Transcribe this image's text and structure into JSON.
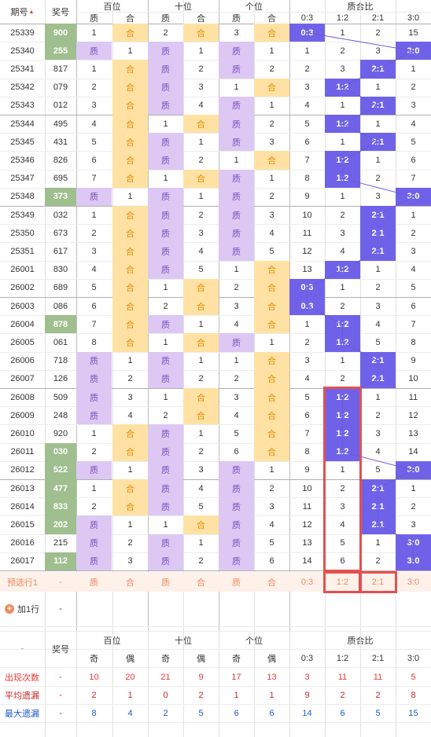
{
  "header": {
    "period": "期号",
    "sort_mark": "▲",
    "prize": "奖号",
    "groups": [
      "百位",
      "十位",
      "个位",
      "质合比"
    ],
    "ratio_cols": [
      "0:3",
      "1:2",
      "2:1",
      "3:0"
    ]
  },
  "labels": {
    "zhi": "质",
    "he": "合"
  },
  "chart_data": {
    "type": "table",
    "columns": [
      "期号",
      "奖号",
      "百位",
      "十位",
      "个位",
      "质合比"
    ],
    "ratio_categories": [
      "0:3",
      "1:2",
      "2:1",
      "3:0"
    ],
    "rows": [
      {
        "period": "25339",
        "prize": "900",
        "hl": true,
        "d": [
          [
            "n",
            "1"
          ],
          [
            "h",
            "合"
          ],
          [
            "n",
            "2"
          ],
          [
            "h",
            "合"
          ],
          [
            "n",
            "3"
          ],
          [
            "h",
            "合"
          ]
        ],
        "r": [
          "0:3",
          "1",
          "2",
          "15"
        ]
      },
      {
        "period": "25340",
        "prize": "255",
        "hl": true,
        "d": [
          [
            "z",
            "质"
          ],
          [
            "n",
            "1"
          ],
          [
            "z",
            "质"
          ],
          [
            "n",
            "1"
          ],
          [
            "z",
            "质"
          ],
          [
            "n",
            "1"
          ]
        ],
        "r": [
          "1",
          "2",
          "3",
          "3:0"
        ]
      },
      {
        "period": "25341",
        "prize": "817",
        "hl": false,
        "d": [
          [
            "n",
            "1"
          ],
          [
            "h",
            "合"
          ],
          [
            "z",
            "质"
          ],
          [
            "n",
            "2"
          ],
          [
            "z",
            "质"
          ],
          [
            "n",
            "2"
          ]
        ],
        "r": [
          "2",
          "3",
          "2:1",
          "1"
        ]
      },
      {
        "period": "25342",
        "prize": "079",
        "hl": false,
        "d": [
          [
            "n",
            "2"
          ],
          [
            "h",
            "合"
          ],
          [
            "z",
            "质"
          ],
          [
            "n",
            "3"
          ],
          [
            "n",
            "1"
          ],
          [
            "h",
            "合"
          ]
        ],
        "r": [
          "3",
          "1:2",
          "1",
          "2"
        ]
      },
      {
        "period": "25343",
        "prize": "012",
        "hl": false,
        "d": [
          [
            "n",
            "3"
          ],
          [
            "h",
            "合"
          ],
          [
            "z",
            "质"
          ],
          [
            "n",
            "4"
          ],
          [
            "z",
            "质"
          ],
          [
            "n",
            "1"
          ]
        ],
        "r": [
          "4",
          "1",
          "2:1",
          "3"
        ]
      },
      {
        "period": "25344",
        "prize": "495",
        "hl": false,
        "d": [
          [
            "n",
            "4"
          ],
          [
            "h",
            "合"
          ],
          [
            "n",
            "1"
          ],
          [
            "h",
            "合"
          ],
          [
            "z",
            "质"
          ],
          [
            "n",
            "2"
          ]
        ],
        "r": [
          "5",
          "1:2",
          "1",
          "4"
        ]
      },
      {
        "period": "25345",
        "prize": "431",
        "hl": false,
        "d": [
          [
            "n",
            "5"
          ],
          [
            "h",
            "合"
          ],
          [
            "z",
            "质"
          ],
          [
            "n",
            "1"
          ],
          [
            "z",
            "质"
          ],
          [
            "n",
            "3"
          ]
        ],
        "r": [
          "6",
          "1",
          "2:1",
          "5"
        ]
      },
      {
        "period": "25346",
        "prize": "826",
        "hl": false,
        "d": [
          [
            "n",
            "6"
          ],
          [
            "h",
            "合"
          ],
          [
            "z",
            "质"
          ],
          [
            "n",
            "2"
          ],
          [
            "n",
            "1"
          ],
          [
            "h",
            "合"
          ]
        ],
        "r": [
          "7",
          "1:2",
          "1",
          "6"
        ]
      },
      {
        "period": "25347",
        "prize": "695",
        "hl": false,
        "d": [
          [
            "n",
            "7"
          ],
          [
            "h",
            "合"
          ],
          [
            "n",
            "1"
          ],
          [
            "h",
            "合"
          ],
          [
            "z",
            "质"
          ],
          [
            "n",
            "1"
          ]
        ],
        "r": [
          "8",
          "1:2",
          "2",
          "7"
        ]
      },
      {
        "period": "25348",
        "prize": "373",
        "hl": true,
        "d": [
          [
            "z",
            "质"
          ],
          [
            "n",
            "1"
          ],
          [
            "z",
            "质"
          ],
          [
            "n",
            "1"
          ],
          [
            "z",
            "质"
          ],
          [
            "n",
            "2"
          ]
        ],
        "r": [
          "9",
          "1",
          "3",
          "3:0"
        ]
      },
      {
        "period": "25349",
        "prize": "032",
        "hl": false,
        "d": [
          [
            "n",
            "1"
          ],
          [
            "h",
            "合"
          ],
          [
            "z",
            "质"
          ],
          [
            "n",
            "2"
          ],
          [
            "z",
            "质"
          ],
          [
            "n",
            "3"
          ]
        ],
        "r": [
          "10",
          "2",
          "2:1",
          "1"
        ]
      },
      {
        "period": "25350",
        "prize": "673",
        "hl": false,
        "d": [
          [
            "n",
            "2"
          ],
          [
            "h",
            "合"
          ],
          [
            "z",
            "质"
          ],
          [
            "n",
            "3"
          ],
          [
            "z",
            "质"
          ],
          [
            "n",
            "4"
          ]
        ],
        "r": [
          "11",
          "3",
          "2:1",
          "2"
        ]
      },
      {
        "period": "25351",
        "prize": "617",
        "hl": false,
        "d": [
          [
            "n",
            "3"
          ],
          [
            "h",
            "合"
          ],
          [
            "z",
            "质"
          ],
          [
            "n",
            "4"
          ],
          [
            "z",
            "质"
          ],
          [
            "n",
            "5"
          ]
        ],
        "r": [
          "12",
          "4",
          "2:1",
          "3"
        ]
      },
      {
        "period": "26001",
        "prize": "830",
        "hl": false,
        "d": [
          [
            "n",
            "4"
          ],
          [
            "h",
            "合"
          ],
          [
            "z",
            "质"
          ],
          [
            "n",
            "5"
          ],
          [
            "n",
            "1"
          ],
          [
            "h",
            "合"
          ]
        ],
        "r": [
          "13",
          "1:2",
          "1",
          "4"
        ]
      },
      {
        "period": "26002",
        "prize": "689",
        "hl": false,
        "d": [
          [
            "n",
            "5"
          ],
          [
            "h",
            "合"
          ],
          [
            "n",
            "1"
          ],
          [
            "h",
            "合"
          ],
          [
            "n",
            "2"
          ],
          [
            "h",
            "合"
          ]
        ],
        "r": [
          "0:3",
          "1",
          "2",
          "5"
        ]
      },
      {
        "period": "26003",
        "prize": "086",
        "hl": false,
        "d": [
          [
            "n",
            "6"
          ],
          [
            "h",
            "合"
          ],
          [
            "n",
            "2"
          ],
          [
            "h",
            "合"
          ],
          [
            "n",
            "3"
          ],
          [
            "h",
            "合"
          ]
        ],
        "r": [
          "0:3",
          "2",
          "3",
          "6"
        ]
      },
      {
        "period": "26004",
        "prize": "878",
        "hl": true,
        "d": [
          [
            "n",
            "7"
          ],
          [
            "h",
            "合"
          ],
          [
            "z",
            "质"
          ],
          [
            "n",
            "1"
          ],
          [
            "n",
            "4"
          ],
          [
            "h",
            "合"
          ]
        ],
        "r": [
          "1",
          "1:2",
          "4",
          "7"
        ]
      },
      {
        "period": "26005",
        "prize": "061",
        "hl": false,
        "d": [
          [
            "n",
            "8"
          ],
          [
            "h",
            "合"
          ],
          [
            "n",
            "1"
          ],
          [
            "h",
            "合"
          ],
          [
            "z",
            "质"
          ],
          [
            "n",
            "1"
          ]
        ],
        "r": [
          "2",
          "1:2",
          "5",
          "8"
        ]
      },
      {
        "period": "26006",
        "prize": "718",
        "hl": false,
        "d": [
          [
            "z",
            "质"
          ],
          [
            "n",
            "1"
          ],
          [
            "z",
            "质"
          ],
          [
            "n",
            "1"
          ],
          [
            "n",
            "1"
          ],
          [
            "h",
            "合"
          ]
        ],
        "r": [
          "3",
          "1",
          "2:1",
          "9"
        ]
      },
      {
        "period": "26007",
        "prize": "126",
        "hl": false,
        "d": [
          [
            "z",
            "质"
          ],
          [
            "n",
            "2"
          ],
          [
            "z",
            "质"
          ],
          [
            "n",
            "2"
          ],
          [
            "n",
            "2"
          ],
          [
            "h",
            "合"
          ]
        ],
        "r": [
          "4",
          "2",
          "2:1",
          "10"
        ]
      },
      {
        "period": "26008",
        "prize": "509",
        "hl": false,
        "d": [
          [
            "z",
            "质"
          ],
          [
            "n",
            "3"
          ],
          [
            "n",
            "1"
          ],
          [
            "h",
            "合"
          ],
          [
            "n",
            "3"
          ],
          [
            "h",
            "合"
          ]
        ],
        "r": [
          "5",
          "1:2",
          "1",
          "11"
        ]
      },
      {
        "period": "26009",
        "prize": "248",
        "hl": false,
        "d": [
          [
            "z",
            "质"
          ],
          [
            "n",
            "4"
          ],
          [
            "n",
            "2"
          ],
          [
            "h",
            "合"
          ],
          [
            "n",
            "4"
          ],
          [
            "h",
            "合"
          ]
        ],
        "r": [
          "6",
          "1:2",
          "2",
          "12"
        ]
      },
      {
        "period": "26010",
        "prize": "920",
        "hl": false,
        "d": [
          [
            "n",
            "1"
          ],
          [
            "h",
            "合"
          ],
          [
            "z",
            "质"
          ],
          [
            "n",
            "1"
          ],
          [
            "n",
            "5"
          ],
          [
            "h",
            "合"
          ]
        ],
        "r": [
          "7",
          "1:2",
          "3",
          "13"
        ]
      },
      {
        "period": "26011",
        "prize": "030",
        "hl": true,
        "d": [
          [
            "n",
            "2"
          ],
          [
            "h",
            "合"
          ],
          [
            "z",
            "质"
          ],
          [
            "n",
            "2"
          ],
          [
            "n",
            "6"
          ],
          [
            "h",
            "合"
          ]
        ],
        "r": [
          "8",
          "1:2",
          "4",
          "14"
        ]
      },
      {
        "period": "26012",
        "prize": "522",
        "hl": true,
        "d": [
          [
            "z",
            "质"
          ],
          [
            "n",
            "1"
          ],
          [
            "z",
            "质"
          ],
          [
            "n",
            "3"
          ],
          [
            "z",
            "质"
          ],
          [
            "n",
            "1"
          ]
        ],
        "r": [
          "9",
          "1",
          "5",
          "3:0"
        ]
      },
      {
        "period": "26013",
        "prize": "477",
        "hl": true,
        "d": [
          [
            "n",
            "1"
          ],
          [
            "h",
            "合"
          ],
          [
            "z",
            "质"
          ],
          [
            "n",
            "4"
          ],
          [
            "z",
            "质"
          ],
          [
            "n",
            "2"
          ]
        ],
        "r": [
          "10",
          "2",
          "2:1",
          "1"
        ]
      },
      {
        "period": "26014",
        "prize": "833",
        "hl": true,
        "d": [
          [
            "n",
            "2"
          ],
          [
            "h",
            "合"
          ],
          [
            "z",
            "质"
          ],
          [
            "n",
            "5"
          ],
          [
            "z",
            "质"
          ],
          [
            "n",
            "3"
          ]
        ],
        "r": [
          "11",
          "3",
          "2:1",
          "2"
        ]
      },
      {
        "period": "26015",
        "prize": "202",
        "hl": true,
        "d": [
          [
            "z",
            "质"
          ],
          [
            "n",
            "1"
          ],
          [
            "n",
            "1"
          ],
          [
            "h",
            "合"
          ],
          [
            "z",
            "质"
          ],
          [
            "n",
            "4"
          ]
        ],
        "r": [
          "12",
          "4",
          "2:1",
          "3"
        ]
      },
      {
        "period": "26016",
        "prize": "215",
        "hl": false,
        "d": [
          [
            "z",
            "质"
          ],
          [
            "n",
            "2"
          ],
          [
            "z",
            "质"
          ],
          [
            "n",
            "1"
          ],
          [
            "z",
            "质"
          ],
          [
            "n",
            "5"
          ]
        ],
        "r": [
          "13",
          "5",
          "1",
          "3:0"
        ]
      },
      {
        "period": "26017",
        "prize": "112",
        "hl": true,
        "d": [
          [
            "z",
            "质"
          ],
          [
            "n",
            "3"
          ],
          [
            "z",
            "质"
          ],
          [
            "n",
            "2"
          ],
          [
            "z",
            "质"
          ],
          [
            "n",
            "6"
          ]
        ],
        "r": [
          "14",
          "6",
          "2",
          "3:0"
        ]
      }
    ],
    "highlighted_columns": [
      "1:2",
      "2:1"
    ]
  },
  "prerow": {
    "label": "预选行1",
    "prize": "-",
    "cells": [
      "质",
      "合",
      "质",
      "合",
      "质",
      "合",
      "0:3",
      "1:2",
      "2:1",
      "3:0"
    ]
  },
  "add_row": {
    "label": "加1行",
    "value": "-"
  },
  "stats_header": {
    "dash": "-",
    "prize": "奖号",
    "groups": [
      "百位",
      "十位",
      "个位",
      "质合比"
    ],
    "subs": [
      "奇",
      "偶",
      "奇",
      "偶",
      "奇",
      "偶",
      "0:3",
      "1:2",
      "2:1",
      "3:0"
    ]
  },
  "stats": [
    {
      "label": "出现次数",
      "prize": "-",
      "values": [
        "10",
        "20",
        "21",
        "9",
        "17",
        "13",
        "3",
        "11",
        "11",
        "5"
      ],
      "color": "#e53935"
    },
    {
      "label": "平均遗漏",
      "prize": "-",
      "values": [
        "2",
        "1",
        "0",
        "2",
        "1",
        "1",
        "9",
        "2",
        "2",
        "8"
      ],
      "color": "#c62828"
    },
    {
      "label": "最大遗漏",
      "prize": "-",
      "values": [
        "8",
        "4",
        "2",
        "5",
        "6",
        "6",
        "14",
        "6",
        "5",
        "15"
      ],
      "color": "#1e5bc6"
    }
  ],
  "colors": {
    "zhi": "#dcc8f3",
    "he": "#ffe2a3",
    "hit": "#7062e8",
    "prize": "#9fbf8e",
    "box": "#e45050",
    "pre": "#f08a5d"
  }
}
